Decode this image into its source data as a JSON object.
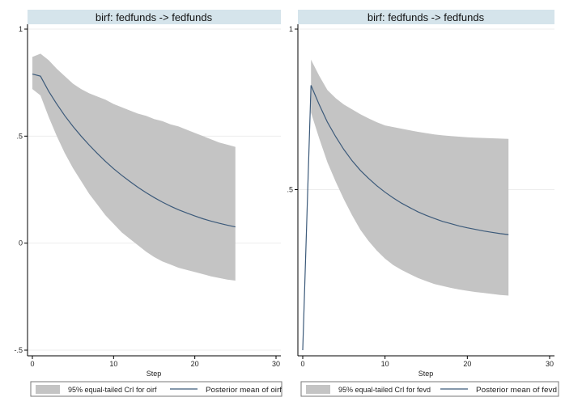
{
  "colors": {
    "band": "#c4c4c4",
    "line": "#3c5a7a",
    "title_bg": "#d5e4eb",
    "grid": "#ededed",
    "axis": "#000000"
  },
  "chart_data": [
    {
      "type": "area",
      "title": "birf: fedfunds -> fedfunds",
      "xlabel": "Step",
      "ylabel": "",
      "xlim": [
        0,
        30
      ],
      "ylim": [
        -0.5,
        1
      ],
      "xticks": [
        0,
        10,
        20,
        30
      ],
      "xtick_labels": [
        "0",
        "10",
        "20",
        "30"
      ],
      "yticks": [
        -0.5,
        0,
        0.5,
        1
      ],
      "ytick_labels": [
        "-.5",
        "0",
        ".5",
        "1"
      ],
      "grid": true,
      "x": [
        0,
        1,
        2,
        3,
        4,
        5,
        6,
        7,
        8,
        9,
        10,
        11,
        12,
        13,
        14,
        15,
        16,
        17,
        18,
        19,
        20,
        21,
        22,
        23,
        24,
        25
      ],
      "series": [
        {
          "name": "Posterior mean of oirf",
          "style": "line",
          "values": [
            0.79,
            0.78,
            0.71,
            0.65,
            0.595,
            0.545,
            0.5,
            0.458,
            0.419,
            0.382,
            0.348,
            0.317,
            0.288,
            0.261,
            0.236,
            0.213,
            0.192,
            0.173,
            0.156,
            0.141,
            0.127,
            0.114,
            0.103,
            0.093,
            0.084,
            0.076
          ]
        },
        {
          "name": "95% equal-tailed CrI for oirf",
          "style": "band",
          "lower": [
            0.72,
            0.69,
            0.59,
            0.5,
            0.42,
            0.35,
            0.29,
            0.23,
            0.18,
            0.13,
            0.09,
            0.05,
            0.02,
            -0.01,
            -0.04,
            -0.065,
            -0.085,
            -0.1,
            -0.115,
            -0.125,
            -0.135,
            -0.145,
            -0.155,
            -0.163,
            -0.17,
            -0.175
          ],
          "upper": [
            0.87,
            0.885,
            0.855,
            0.815,
            0.78,
            0.745,
            0.72,
            0.7,
            0.685,
            0.67,
            0.65,
            0.635,
            0.62,
            0.605,
            0.595,
            0.58,
            0.57,
            0.555,
            0.545,
            0.53,
            0.515,
            0.5,
            0.485,
            0.47,
            0.46,
            0.45
          ]
        }
      ],
      "legend": [
        "95% equal-tailed CrI for oirf",
        "Posterior mean of oirf"
      ],
      "legend_placement": "bottom"
    },
    {
      "type": "area",
      "title": "birf: fedfunds -> fedfunds",
      "xlabel": "Step",
      "ylabel": "",
      "xlim": [
        0,
        30
      ],
      "ylim": [
        0,
        1
      ],
      "xticks": [
        0,
        10,
        20,
        30
      ],
      "xtick_labels": [
        "0",
        "10",
        "20",
        "30"
      ],
      "yticks": [
        0.5,
        1
      ],
      "ytick_labels": [
        ".5",
        "1"
      ],
      "grid": true,
      "x": [
        0,
        1,
        2,
        3,
        4,
        5,
        6,
        7,
        8,
        9,
        10,
        11,
        12,
        13,
        14,
        15,
        16,
        17,
        18,
        19,
        20,
        21,
        22,
        23,
        24,
        25
      ],
      "series": [
        {
          "name": "Posterior mean of fevd",
          "style": "line",
          "values": [
            0.0,
            0.825,
            0.765,
            0.71,
            0.665,
            0.625,
            0.59,
            0.56,
            0.535,
            0.512,
            0.492,
            0.474,
            0.458,
            0.444,
            0.431,
            0.42,
            0.41,
            0.401,
            0.394,
            0.387,
            0.381,
            0.376,
            0.371,
            0.367,
            0.363,
            0.36
          ]
        },
        {
          "name": "95% equal-tailed CrI for fevd",
          "style": "band",
          "lower": [
            null,
            0.74,
            0.66,
            0.585,
            0.525,
            0.47,
            0.42,
            0.375,
            0.34,
            0.31,
            0.285,
            0.265,
            0.25,
            0.237,
            0.225,
            0.215,
            0.206,
            0.2,
            0.194,
            0.189,
            0.185,
            0.181,
            0.178,
            0.175,
            0.172,
            0.17
          ],
          "upper": [
            null,
            0.905,
            0.855,
            0.81,
            0.785,
            0.765,
            0.75,
            0.735,
            0.722,
            0.71,
            0.7,
            0.695,
            0.69,
            0.685,
            0.68,
            0.676,
            0.672,
            0.669,
            0.667,
            0.665,
            0.663,
            0.662,
            0.661,
            0.66,
            0.659,
            0.658
          ]
        }
      ],
      "legend": [
        "95% equal-tailed CrI for fevd",
        "Posterior mean of fevd"
      ],
      "legend_placement": "bottom"
    }
  ]
}
